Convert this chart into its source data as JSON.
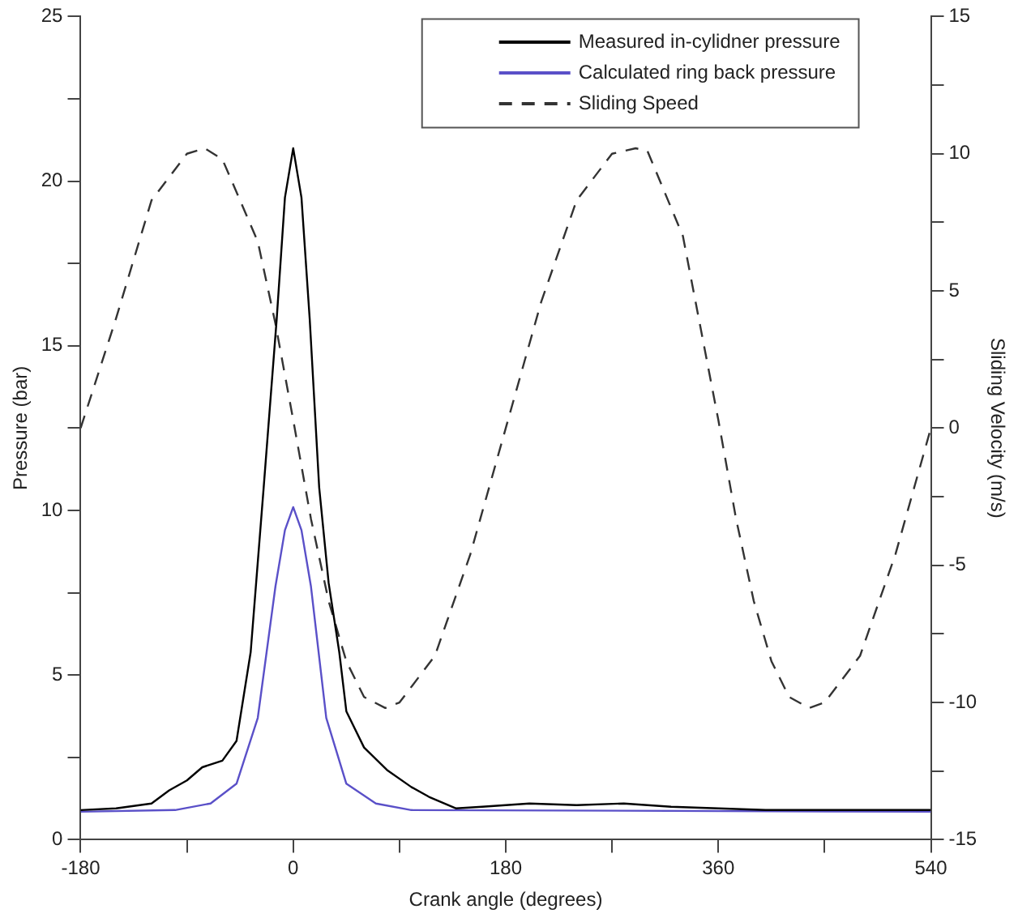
{
  "chart_data": {
    "type": "line",
    "xlabel": "Crank angle (degrees)",
    "ylabel": "Pressure (bar)",
    "y2label": "Sliding Velocity (m/s)",
    "xlim": [
      -180,
      540
    ],
    "xticks": [
      -180,
      {
        "value": -90,
        "label": null
      },
      0,
      {
        "value": 90,
        "label": null
      },
      180,
      {
        "value": 270,
        "label": null
      },
      360,
      {
        "value": 450,
        "label": null
      },
      540
    ],
    "ylim": [
      0,
      25
    ],
    "yticks": [
      0,
      {
        "value": 2.5,
        "label": null
      },
      5,
      {
        "value": 7.5,
        "label": null
      },
      10,
      {
        "value": 12.5,
        "label": null
      },
      15,
      {
        "value": 17.5,
        "label": null
      },
      20,
      {
        "value": 22.5,
        "label": null
      },
      25
    ],
    "y2lim": [
      -15,
      15
    ],
    "y2ticks": [
      -15,
      {
        "value": -12.5,
        "label": null
      },
      -10,
      {
        "value": -7.5,
        "label": null
      },
      -5,
      {
        "value": -2.5,
        "label": null
      },
      0,
      {
        "value": 2.5,
        "label": null
      },
      5,
      {
        "value": 7.5,
        "label": null
      },
      10,
      {
        "value": 12.5,
        "label": null
      },
      15
    ],
    "grid": false,
    "legend": "top right",
    "marker": "none",
    "series": [
      {
        "name": "Measured in-cylidner pressure",
        "color": "#000000",
        "line_style": "solid",
        "x": [
          -180,
          -150,
          -120,
          -105,
          -90,
          -77,
          -60,
          -48,
          -36,
          -25,
          -14,
          -7,
          0,
          7,
          14,
          22,
          30,
          39,
          45,
          60,
          80,
          100,
          115,
          138,
          160,
          200,
          240,
          280,
          320,
          360,
          400,
          450,
          500,
          540
        ],
        "values": [
          0.9,
          0.95,
          1.1,
          1.5,
          1.8,
          2.2,
          2.4,
          3.0,
          5.7,
          10.7,
          15.8,
          19.5,
          21,
          19.5,
          15.8,
          10.7,
          7.8,
          5.7,
          3.9,
          2.8,
          2.1,
          1.6,
          1.3,
          0.95,
          1.0,
          1.1,
          1.05,
          1.1,
          1.0,
          0.95,
          0.9,
          0.9,
          0.9,
          0.9
        ]
      },
      {
        "name": "Calculated ring back pressure",
        "color": "#5a50c8",
        "line_style": "solid",
        "x": [
          -180,
          -100,
          -70,
          -48,
          -30,
          -15,
          -7,
          0,
          7,
          15,
          28,
          45,
          70,
          100,
          540
        ],
        "values": [
          0.85,
          0.9,
          1.1,
          1.7,
          3.7,
          7.7,
          9.4,
          10.1,
          9.4,
          7.7,
          3.7,
          1.7,
          1.1,
          0.9,
          0.85
        ]
      },
      {
        "name": "Sliding Speed",
        "color": "#333333",
        "line_style": "dashed",
        "axis": "y2",
        "x": [
          -180,
          -150,
          -120,
          -90,
          -75,
          -60,
          -30,
          -15,
          0,
          15,
          30,
          45,
          60,
          78,
          90,
          120,
          150,
          180,
          210,
          240,
          270,
          290,
          300,
          330,
          360,
          375,
          390,
          405,
          420,
          437,
          450,
          480,
          510,
          540
        ],
        "values": [
          0,
          4,
          8.3,
          10.0,
          10.2,
          9.8,
          6.8,
          3.8,
          0.3,
          -3.3,
          -6.3,
          -8.5,
          -9.8,
          -10.2,
          -10.0,
          -8.3,
          -4.6,
          0,
          4.6,
          8.3,
          10.0,
          10.2,
          10.1,
          7.0,
          0.3,
          -3.3,
          -6.3,
          -8.5,
          -9.8,
          -10.2,
          -10.0,
          -8.3,
          -4.6,
          0
        ]
      }
    ]
  }
}
